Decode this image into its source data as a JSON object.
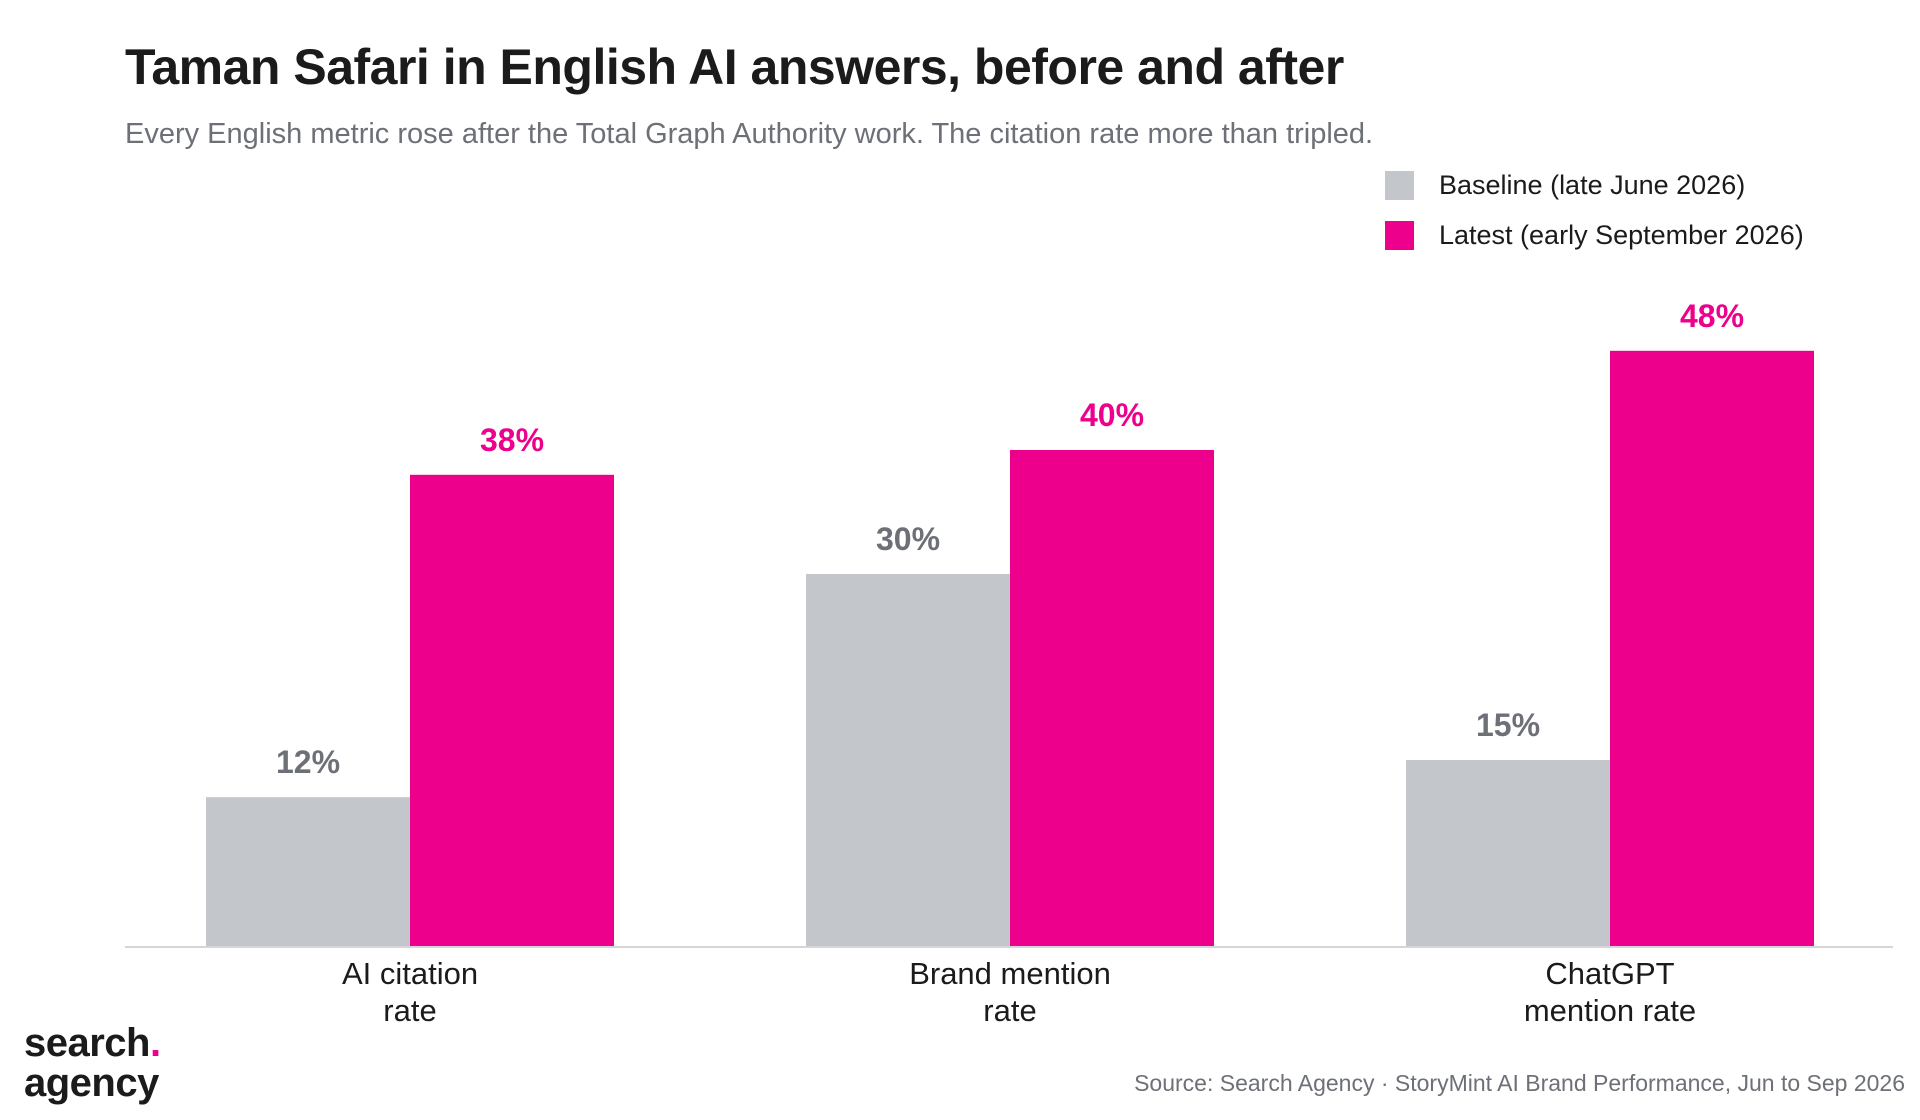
{
  "title": "Taman Safari in English AI answers, before and after",
  "subtitle": "Every English metric rose after the Total Graph Authority work. The citation rate more than tripled.",
  "legend": {
    "baseline": "Baseline (late June 2026)",
    "latest": "Latest (early September 2026)"
  },
  "colors": {
    "baseline": "#c3c6cb",
    "latest": "#ec008c",
    "baseline_label": "#6d7077",
    "axis": "#d4d6d9"
  },
  "logo": {
    "line1": "search",
    "dot": ".",
    "line2": "agency"
  },
  "source": "Source: Search Agency · StoryMint AI Brand Performance, Jun to Sep 2026",
  "chart_data": {
    "type": "bar",
    "categories": [
      [
        "AI citation",
        "rate"
      ],
      [
        "Brand mention",
        "rate"
      ],
      [
        "ChatGPT",
        "mention rate"
      ]
    ],
    "series": [
      {
        "name": "Baseline (late June 2026)",
        "values": [
          12,
          30,
          15
        ],
        "labels": [
          "12%",
          "30%",
          "15%"
        ]
      },
      {
        "name": "Latest (early September 2026)",
        "values": [
          38,
          40,
          48
        ],
        "labels": [
          "38%",
          "40%",
          "48%"
        ]
      }
    ],
    "ylim": [
      0,
      60
    ],
    "grid": false,
    "legend": "top-right",
    "xlabel": "",
    "ylabel": ""
  }
}
